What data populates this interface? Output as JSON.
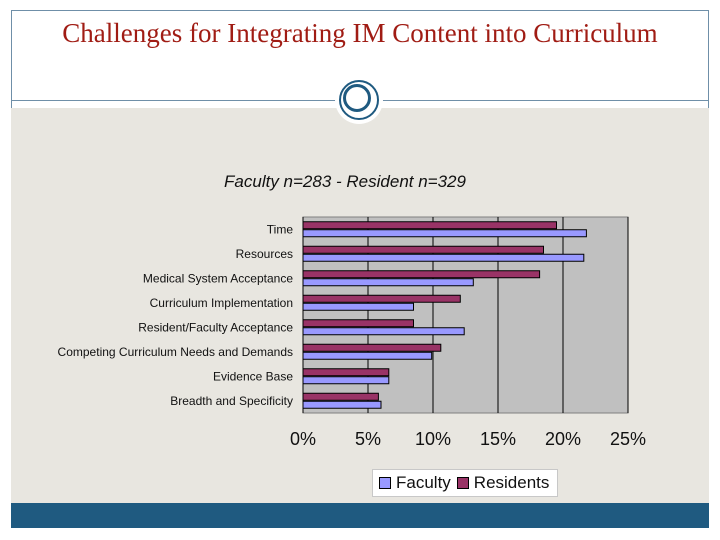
{
  "slide": {
    "title": "Challenges for Integrating IM Content into Curriculum"
  },
  "colors": {
    "title": "#a01c14",
    "frame": "#6f8fa8",
    "footer": "#1f5a80",
    "plot_bg": "#c0c0c0",
    "faculty": "#9999ff",
    "residents": "#993366"
  },
  "chart_data": {
    "type": "bar",
    "orientation": "horizontal",
    "title": "Faculty n=283 - Resident n=329",
    "categories": [
      "Time",
      "Resources",
      "Medical System Acceptance",
      "Curriculum Implementation",
      "Resident/Faculty Acceptance",
      "Competing Curriculum Needs and Demands",
      "Evidence Base",
      "Breadth and Specificity"
    ],
    "series": [
      {
        "name": "Residents",
        "values": [
          19.5,
          18.5,
          18.2,
          12.1,
          8.5,
          10.6,
          6.6,
          5.8
        ]
      },
      {
        "name": "Faculty",
        "values": [
          21.8,
          21.6,
          13.1,
          8.5,
          12.4,
          9.9,
          6.6,
          6.0
        ]
      }
    ],
    "xlim": [
      0,
      25
    ],
    "xticks": [
      "0%",
      "5%",
      "10%",
      "15%",
      "20%",
      "25%"
    ],
    "xlabel": "",
    "ylabel": "",
    "grid": true,
    "legend": [
      "Faculty",
      "Residents"
    ],
    "legend_position": "bottom"
  }
}
